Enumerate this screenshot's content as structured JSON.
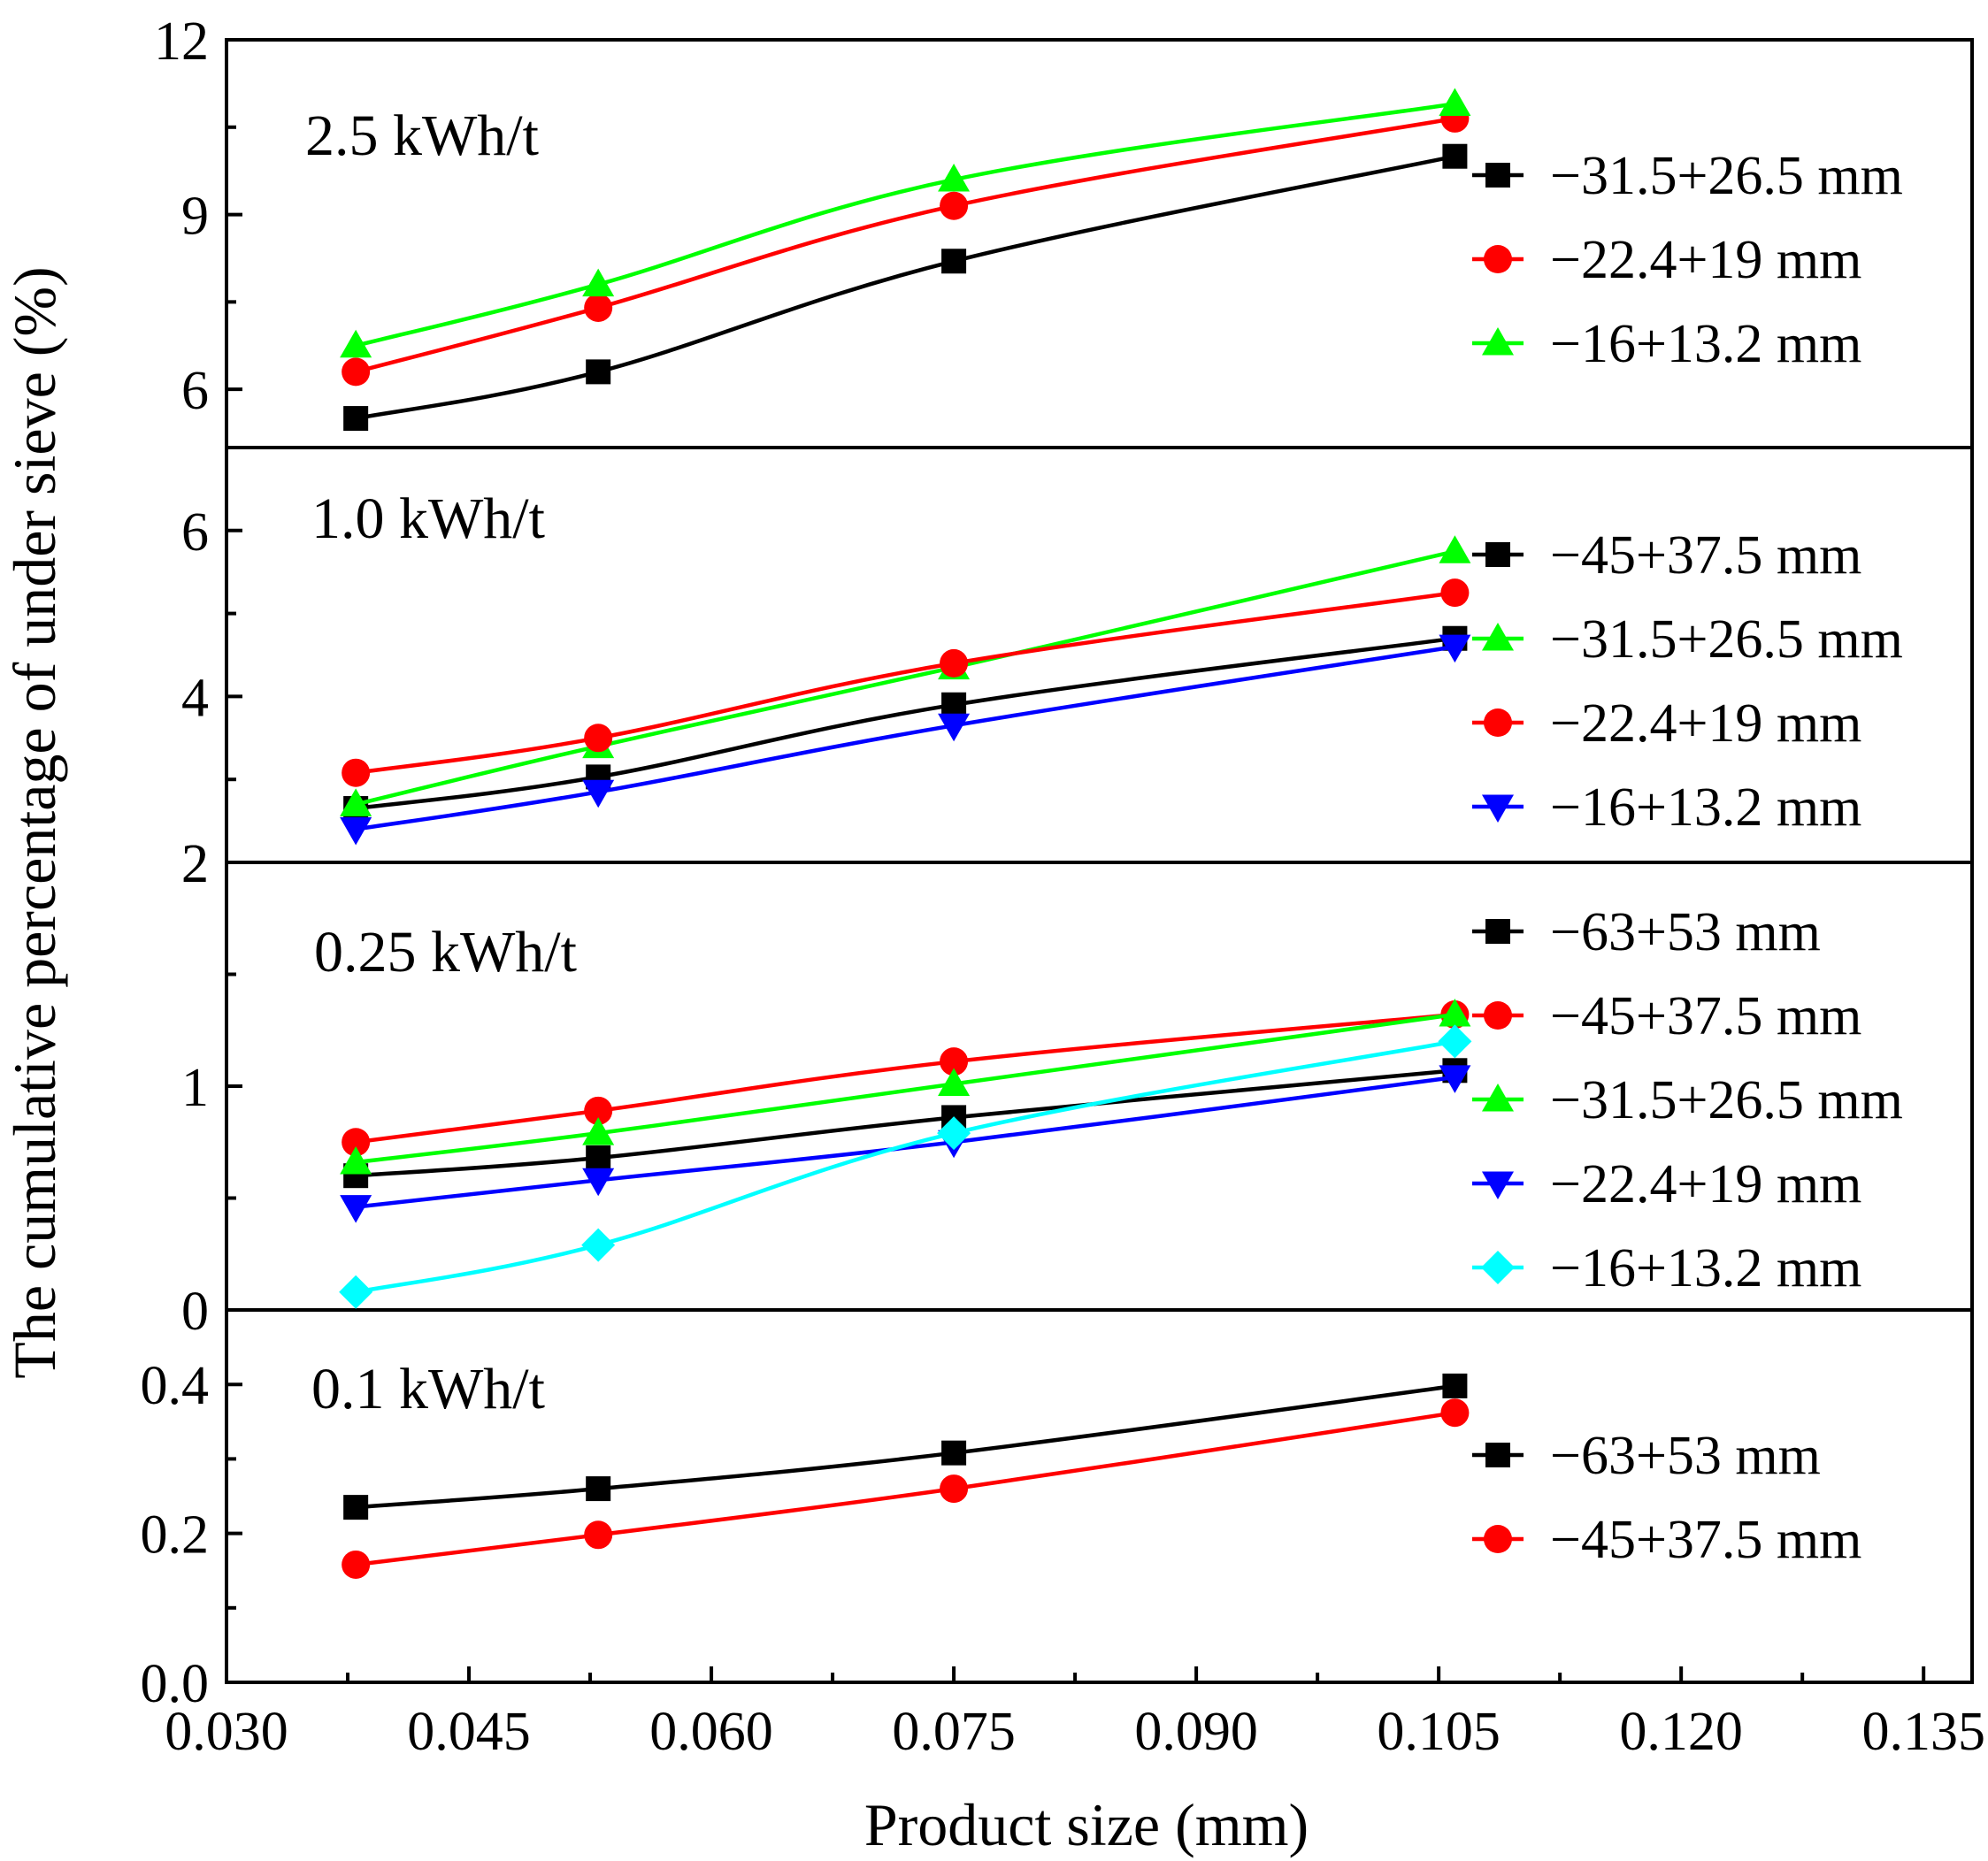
{
  "chart_data": {
    "type": "line",
    "xlabel": "Product size (mm)",
    "ylabel": "The cumulative percentage of under sieve (%)",
    "xlim": [
      0.03,
      0.138
    ],
    "x_ticks": [
      "0.030",
      "0.045",
      "0.060",
      "0.075",
      "0.090",
      "0.105",
      "0.120",
      "0.135"
    ],
    "x": [
      0.038,
      0.053,
      0.075,
      0.106
    ],
    "colors": {
      "black": "#000000",
      "red": "#ff0000",
      "green": "#00ff00",
      "blue": "#0000ff",
      "cyan": "#00ffff"
    },
    "panels": [
      {
        "id": "p25",
        "label": "2.5 kWh/t",
        "ylim": [
          5,
          12
        ],
        "y_ticks": [
          "6",
          "9",
          "12"
        ],
        "y_tick_values": [
          6,
          9,
          12
        ],
        "series": [
          {
            "name": "−31.5+26.5 mm",
            "marker": "square",
            "color": "#000000",
            "values": [
              5.5,
              6.3,
              8.2,
              10.0
            ]
          },
          {
            "name": "−22.4+19 mm",
            "marker": "circle",
            "color": "#ff0000",
            "values": [
              6.3,
              7.4,
              9.15,
              10.65
            ]
          },
          {
            "name": "−16+13.2 mm",
            "marker": "triangle-up",
            "color": "#00ff00",
            "values": [
              6.75,
              7.8,
              9.6,
              10.9
            ]
          }
        ]
      },
      {
        "id": "p10",
        "label": "1.0 kWh/t",
        "ylim": [
          2,
          7
        ],
        "y_ticks": [
          "2",
          "4",
          "6"
        ],
        "y_tick_values": [
          2,
          4,
          6
        ],
        "series": [
          {
            "name": "−45+37.5 mm",
            "marker": "square",
            "color": "#000000",
            "values": [
              2.65,
              3.03,
              3.9,
              4.7
            ]
          },
          {
            "name": "−31.5+26.5 mm",
            "marker": "triangle-up",
            "color": "#00ff00",
            "values": [
              2.7,
              3.4,
              4.35,
              5.75
            ]
          },
          {
            "name": "−22.4+19 mm",
            "marker": "circle",
            "color": "#ff0000",
            "values": [
              3.08,
              3.5,
              4.4,
              5.25
            ]
          },
          {
            "name": "−16+13.2 mm",
            "marker": "triangle-down",
            "color": "#0000ff",
            "values": [
              2.4,
              2.85,
              3.65,
              4.6
            ]
          }
        ]
      },
      {
        "id": "p025",
        "label": "0.25 kWh/t",
        "ylim": [
          0,
          2
        ],
        "y_ticks": [
          "0",
          "1",
          "2"
        ],
        "y_tick_values": [
          0,
          1,
          2
        ],
        "series": [
          {
            "name": "−63+53 mm",
            "marker": "square",
            "color": "#000000",
            "values": [
              0.6,
              0.68,
              0.86,
              1.07
            ]
          },
          {
            "name": "−45+37.5 mm",
            "marker": "circle",
            "color": "#ff0000",
            "values": [
              0.75,
              0.89,
              1.11,
              1.32
            ]
          },
          {
            "name": "−31.5+26.5 mm",
            "marker": "triangle-up",
            "color": "#00ff00",
            "values": [
              0.66,
              0.79,
              1.01,
              1.32
            ]
          },
          {
            "name": "−22.4+19 mm",
            "marker": "triangle-down",
            "color": "#0000ff",
            "values": [
              0.46,
              0.58,
              0.75,
              1.04
            ]
          },
          {
            "name": "−16+13.2 mm",
            "marker": "diamond",
            "color": "#00ffff",
            "values": [
              0.08,
              0.29,
              0.79,
              1.2
            ]
          }
        ]
      },
      {
        "id": "p01",
        "label": "0.1 kWh/t",
        "ylim": [
          0,
          0.5
        ],
        "y_ticks": [
          "0.0",
          "0.2",
          "0.4"
        ],
        "y_tick_values": [
          0,
          0.2,
          0.4
        ],
        "series": [
          {
            "name": "−63+53 mm",
            "marker": "square",
            "color": "#000000",
            "values": [
              0.235,
              0.26,
              0.308,
              0.398
            ]
          },
          {
            "name": "−45+37.5 mm",
            "marker": "circle",
            "color": "#ff0000",
            "values": [
              0.158,
              0.198,
              0.26,
              0.362
            ]
          }
        ]
      }
    ]
  }
}
